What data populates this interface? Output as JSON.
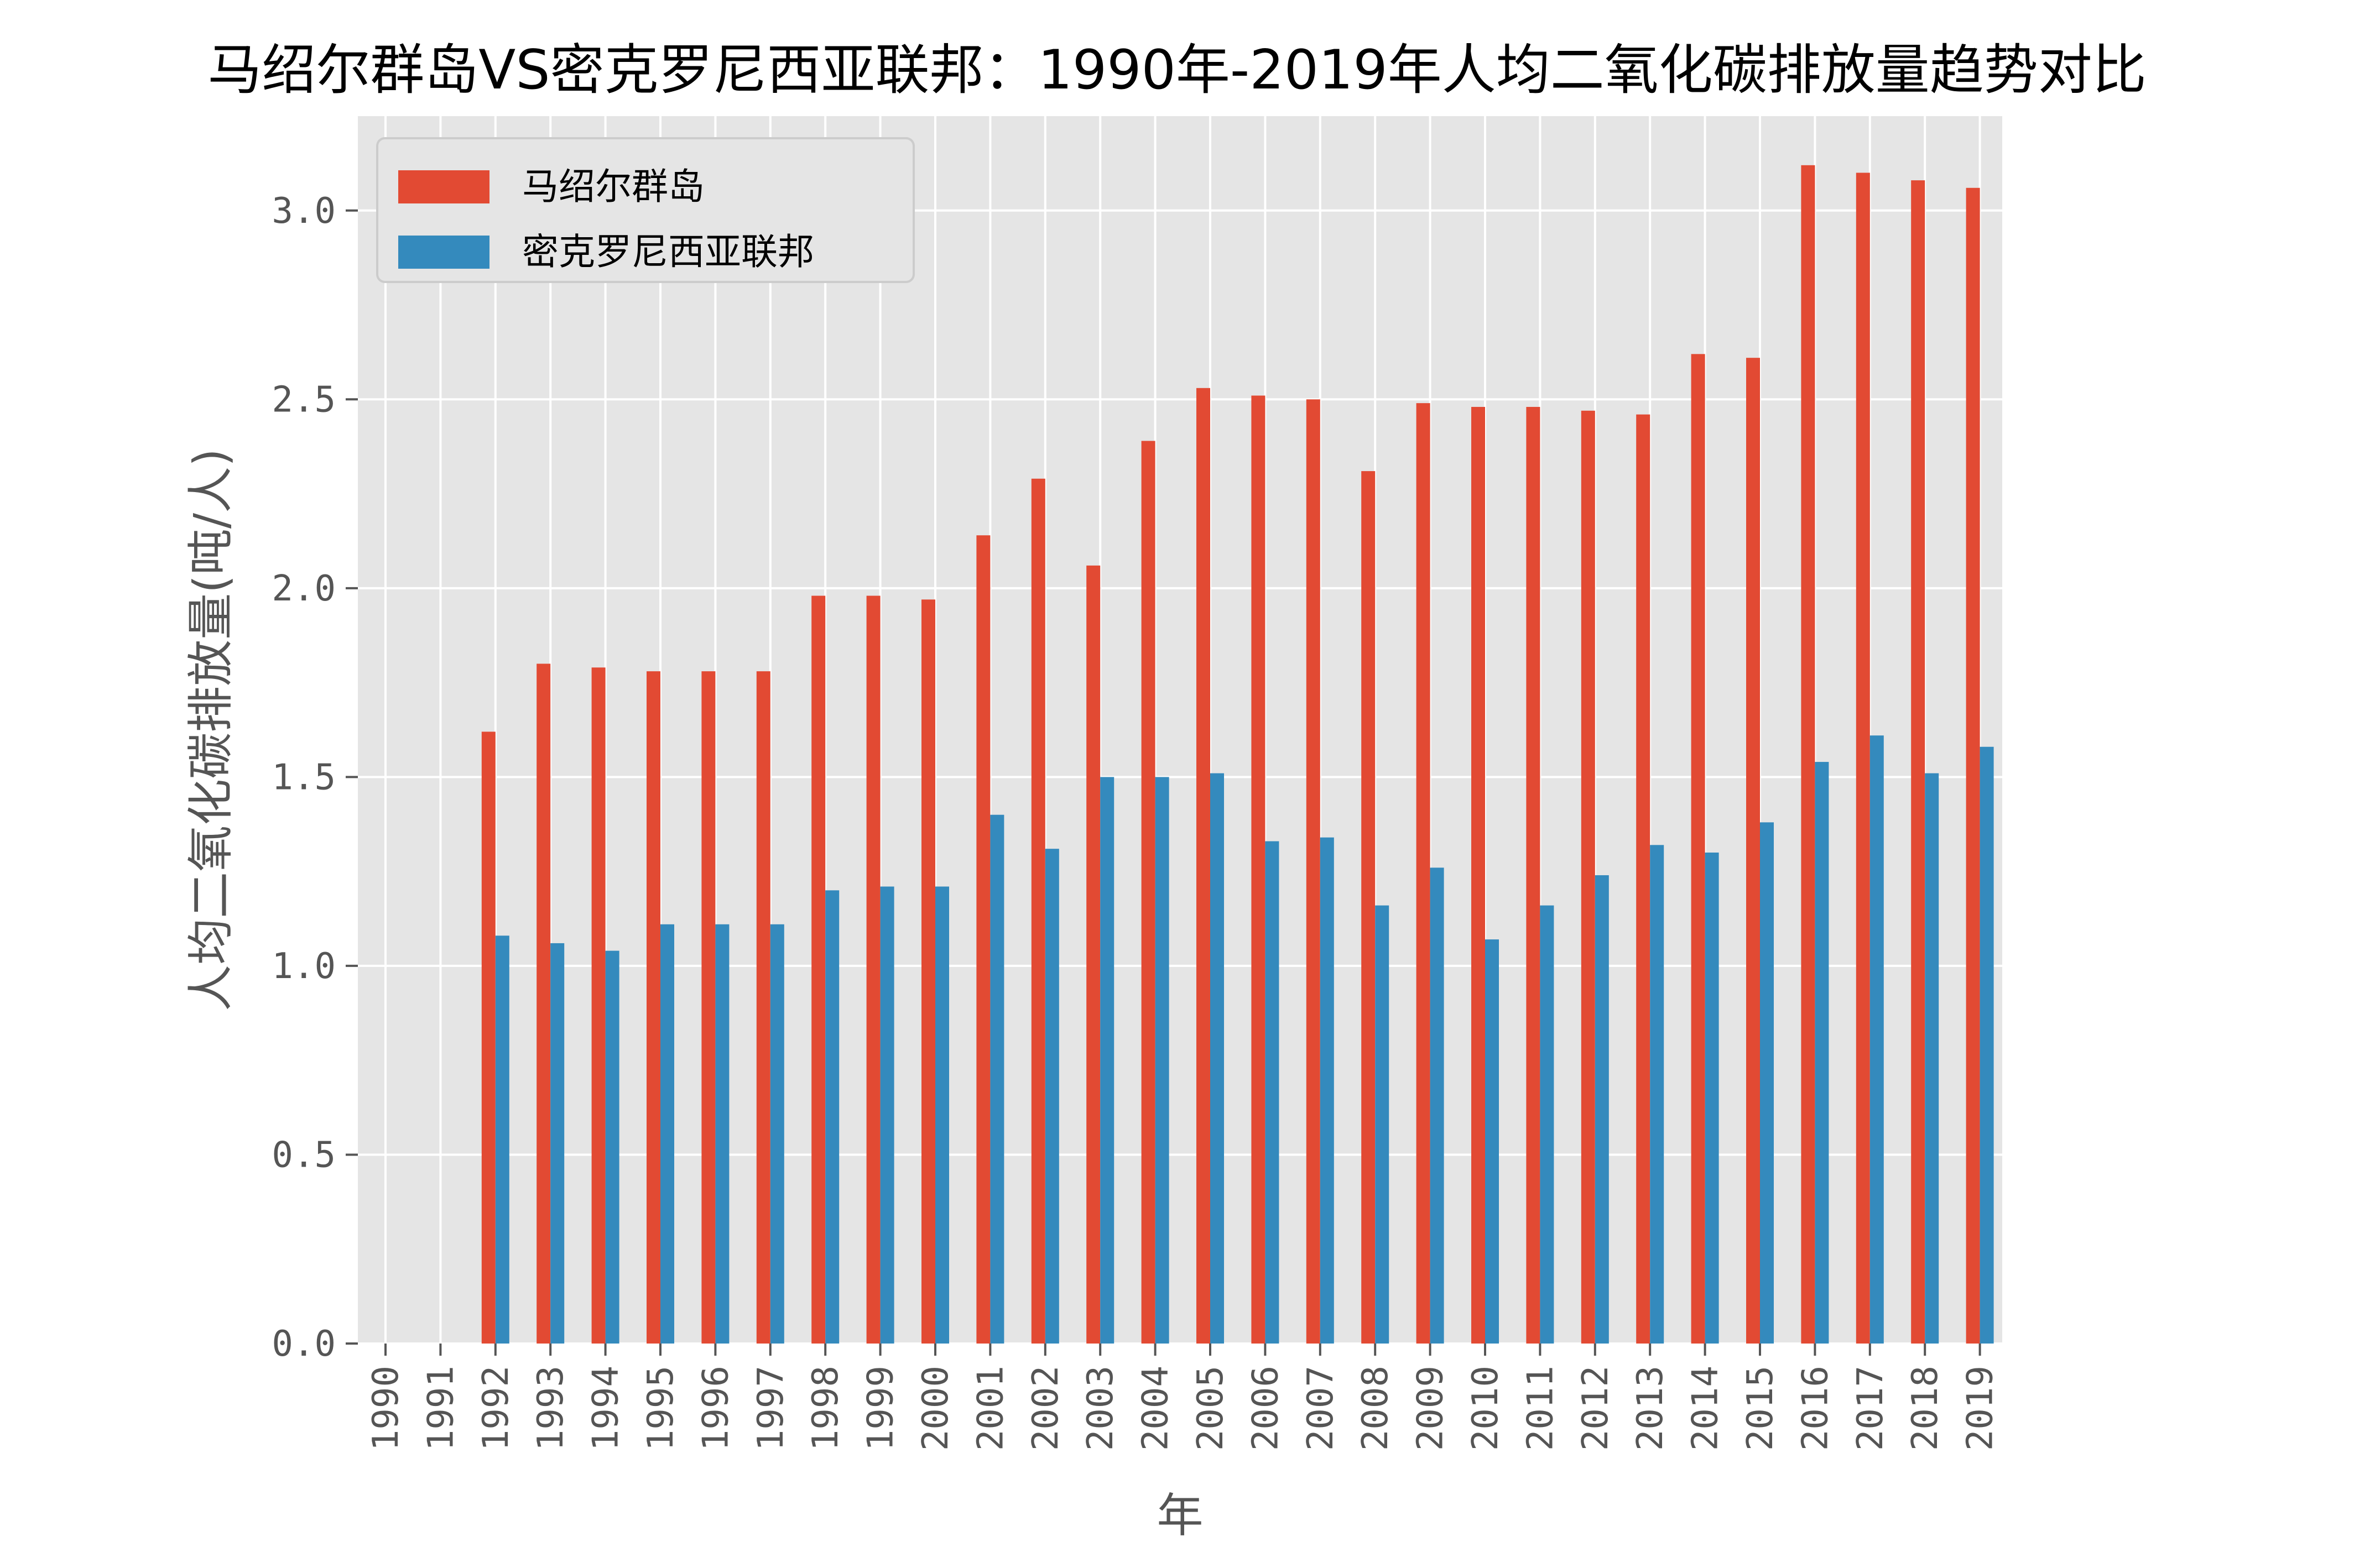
{
  "chart_data": {
    "type": "bar",
    "title": "马绍尔群岛VS密克罗尼西亚联邦：1990年-2019年人均二氧化碳排放量趋势对比",
    "xlabel": "年",
    "ylabel": "人均二氧化碳排放量(吨/人)",
    "ylim": [
      0,
      3.25
    ],
    "yticks": [
      "0.0",
      "0.5",
      "1.0",
      "1.5",
      "2.0",
      "2.5",
      "3.0"
    ],
    "ytick_values": [
      0.0,
      0.5,
      1.0,
      1.5,
      2.0,
      2.5,
      3.0
    ],
    "grid": true,
    "legend_position": "top-left",
    "categories": [
      "1990",
      "1991",
      "1992",
      "1993",
      "1994",
      "1995",
      "1996",
      "1997",
      "1998",
      "1999",
      "2000",
      "2001",
      "2002",
      "2003",
      "2004",
      "2005",
      "2006",
      "2007",
      "2008",
      "2009",
      "2010",
      "2011",
      "2012",
      "2013",
      "2014",
      "2015",
      "2016",
      "2017",
      "2018",
      "2019"
    ],
    "series": [
      {
        "name": "马绍尔群岛",
        "color": "#E24A33",
        "values": [
          0,
          0,
          1.62,
          1.8,
          1.79,
          1.78,
          1.78,
          1.78,
          1.98,
          1.98,
          1.97,
          2.14,
          2.29,
          2.06,
          2.39,
          2.53,
          2.51,
          2.5,
          2.31,
          2.49,
          2.48,
          2.48,
          2.47,
          2.46,
          2.62,
          2.61,
          3.12,
          3.1,
          3.08,
          3.06
        ]
      },
      {
        "name": "密克罗尼西亚联邦",
        "color": "#348ABD",
        "values": [
          0,
          0,
          1.08,
          1.06,
          1.04,
          1.11,
          1.11,
          1.11,
          1.2,
          1.21,
          1.21,
          1.4,
          1.31,
          1.5,
          1.5,
          1.51,
          1.33,
          1.34,
          1.16,
          1.26,
          1.07,
          1.16,
          1.24,
          1.32,
          1.3,
          1.38,
          1.54,
          1.61,
          1.51,
          1.58
        ]
      }
    ],
    "colors": {
      "plot_background": "#E5E5E5",
      "grid": "#FFFFFF"
    }
  }
}
